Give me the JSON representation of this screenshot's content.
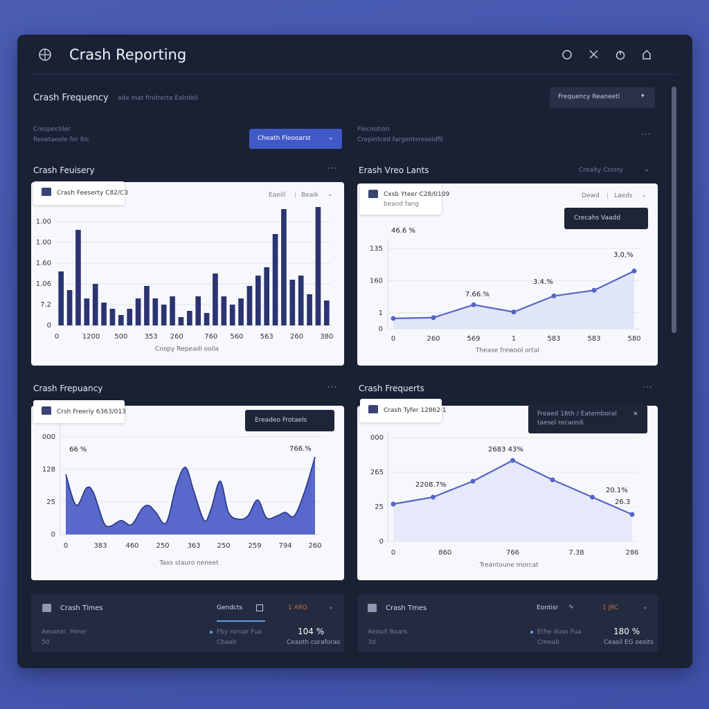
{
  "header": {
    "title": "Crash Reporting"
  },
  "toolbar": {
    "title": "Crash Frequency",
    "subtitle": "ade mat finitrerta Ealrdeil",
    "dropdown": "Frequency Reaneetl"
  },
  "filters": {
    "left": [
      "Crespectiler",
      "Resetaeole for ltic"
    ],
    "button": "Cheath Fleooarst",
    "right": [
      "Flecnotion",
      "Crepinlced fargentsreseidfil"
    ]
  },
  "panels": [
    {
      "title": "Crash Feuisery",
      "chip": "Crash Feeserty C82/C3",
      "links": [
        "Eaeiil",
        "Beaik"
      ]
    },
    {
      "title": "Erash Vreo Lants",
      "menu": "Crealty Ctosty",
      "chip": "Cxsb Yteer C28/0109",
      "chip_sub": "beaod fang",
      "links": [
        "Dewd",
        "Laeds"
      ],
      "button": "Crecahs Vaadd"
    },
    {
      "title": "Crash Frepuancy",
      "chip": "Crsh Freeriy 6363/013",
      "button": "Ereadeo Frotaels"
    },
    {
      "title": "Crash Frequerts",
      "chip": "Crash Tyfer 12862·1",
      "tooltip": [
        "Freaed 16th / Eatemboral",
        "taesel recaredi"
      ]
    }
  ],
  "chart_data": [
    {
      "type": "bar",
      "x_label": "Cnopy Repeadi ooila",
      "color": "#2b3470",
      "grid": true,
      "x": [
        0.5,
        1.5,
        2.5,
        3.5,
        4.5,
        5.5,
        6.5,
        7.5,
        8.5,
        9.5,
        10.5,
        11.5,
        12.5,
        13.5,
        14.5,
        15.5,
        16.5,
        17.5,
        18.5,
        19.5,
        20.5,
        21.5,
        22.5,
        23.5,
        24.5,
        25.5,
        26.5,
        27.5,
        28.5,
        29.5,
        30.5,
        31.5
      ],
      "values": [
        2.6,
        1.7,
        4.6,
        1.3,
        2.0,
        1.1,
        0.8,
        0.5,
        0.8,
        1.3,
        1.9,
        1.3,
        1.0,
        1.4,
        0.4,
        0.7,
        1.4,
        0.6,
        2.5,
        1.4,
        1.0,
        1.3,
        1.9,
        2.4,
        2.8,
        4.4,
        5.6,
        2.2,
        2.4,
        1.5,
        5.7,
        1.2
      ],
      "xlim": [
        0,
        32
      ],
      "xticks": [
        0,
        {
          "value": 4,
          "label": "1200"
        },
        {
          "value": 7.5,
          "label": "500"
        },
        {
          "value": 11,
          "label": "353"
        },
        {
          "value": 14,
          "label": "260"
        },
        {
          "value": 18,
          "label": "760"
        },
        {
          "value": 21,
          "label": "560"
        },
        {
          "value": 24.5,
          "label": "563"
        },
        {
          "value": 28,
          "label": "260"
        },
        {
          "value": 31.5,
          "label": "380"
        }
      ],
      "ylim": [
        0,
        6
      ],
      "yticks": [
        0,
        {
          "value": 1,
          "label": "7.2"
        },
        {
          "value": 2,
          "label": "1.06"
        },
        {
          "value": 3,
          "label": "1.60"
        },
        {
          "value": 4,
          "label": "1.00"
        },
        {
          "value": 5,
          "label": "1.00"
        }
      ]
    },
    {
      "type": "line",
      "x_label": "Thease frewool ortal",
      "color": "#5565c4",
      "fill": "#dde2f6",
      "grid": true,
      "categories": [
        "0",
        "260",
        "569",
        "1",
        "583",
        "583",
        "580"
      ],
      "values": [
        0.65,
        0.7,
        1.5,
        1.05,
        2.05,
        2.4,
        3.6
      ],
      "annotations": [
        "46.6 %",
        "7.66.%",
        "3.4.%",
        "3,0,%"
      ],
      "ylim": [
        0,
        5.6
      ],
      "yticks": [
        0,
        1,
        {
          "value": 3,
          "label": "160"
        },
        {
          "value": 5,
          "label": "135"
        }
      ]
    },
    {
      "type": "area",
      "x_label": "Taxs stauro neneet",
      "color": "#2f3b8c",
      "fill": "#5869cb",
      "grid": true,
      "x": [
        0,
        1.5,
        3,
        4,
        5.5,
        6.5,
        8,
        9.5,
        11,
        12,
        13,
        14.5,
        16,
        17.3,
        18.5,
        20,
        21,
        22.3,
        23.5,
        25,
        26.3,
        27.7,
        29,
        30.5,
        31.7,
        33,
        34.5,
        36
      ],
      "values": [
        1.85,
        0.9,
        1.43,
        1.28,
        0.36,
        0.26,
        0.43,
        0.3,
        0.79,
        0.89,
        0.68,
        0.36,
        1.53,
        2.06,
        1.32,
        0.43,
        0.79,
        1.64,
        0.68,
        0.47,
        0.57,
        1.06,
        0.51,
        0.57,
        0.68,
        0.57,
        1.32,
        2.38
      ],
      "annotations": [
        "66 %",
        "766.%"
      ],
      "xlim": [
        0,
        36
      ],
      "xticks": [
        0,
        {
          "value": 5,
          "label": "383"
        },
        {
          "value": 9.6,
          "label": "460"
        },
        {
          "value": 14,
          "label": "250"
        },
        {
          "value": 18.5,
          "label": "363"
        },
        {
          "value": 22.8,
          "label": "250"
        },
        {
          "value": 27.3,
          "label": "259"
        },
        {
          "value": 31.7,
          "label": "794"
        },
        {
          "value": 36,
          "label": "260"
        }
      ],
      "ylim": [
        0,
        3.4
      ],
      "yticks": [
        0,
        {
          "value": 1,
          "label": "25"
        },
        {
          "value": 2,
          "label": "128"
        },
        {
          "value": 3,
          "label": "000"
        }
      ]
    },
    {
      "type": "line",
      "x_label": "Treantoune morcat",
      "color": "#5565c4",
      "fill": "#e3e7f8",
      "grid": true,
      "x": [
        0,
        1,
        2,
        3,
        4,
        5,
        6
      ],
      "values": [
        1.08,
        1.28,
        1.74,
        2.34,
        1.78,
        1.28,
        0.78
      ],
      "annotations": [
        "2683 43%",
        "2208.7%",
        "20.1%",
        "26.3"
      ],
      "xlim": [
        0,
        6
      ],
      "xticks": [
        0,
        {
          "value": 1.3,
          "label": "860"
        },
        {
          "value": 3,
          "label": "766"
        },
        {
          "value": 4.6,
          "label": "7.38"
        },
        {
          "value": 6,
          "label": "286"
        }
      ],
      "ylim": [
        0,
        3.2
      ],
      "yticks": [
        0,
        {
          "value": 1,
          "label": "25"
        },
        {
          "value": 2,
          "label": "265"
        },
        {
          "value": 3,
          "label": "000"
        }
      ]
    }
  ],
  "summary_cards": [
    {
      "title": "Crash Times",
      "tab": "Gendcts",
      "badge": "1 ARG",
      "left": [
        "Aeoater, Hiner",
        "50"
      ],
      "item": [
        "Fby roroar Fua",
        "Cbaab"
      ],
      "value": "104 %",
      "value_sub": "Ceaoth coraforas"
    },
    {
      "title": "Crash Tmes",
      "tab": "Eontisr",
      "badge": "1 JRC",
      "left": [
        "Aeouit Boars",
        "3d"
      ],
      "item": [
        "Ethe duas Fua",
        "Cmeab"
      ],
      "value": "180 %",
      "value_sub": "Ceasil EG oesits"
    }
  ]
}
